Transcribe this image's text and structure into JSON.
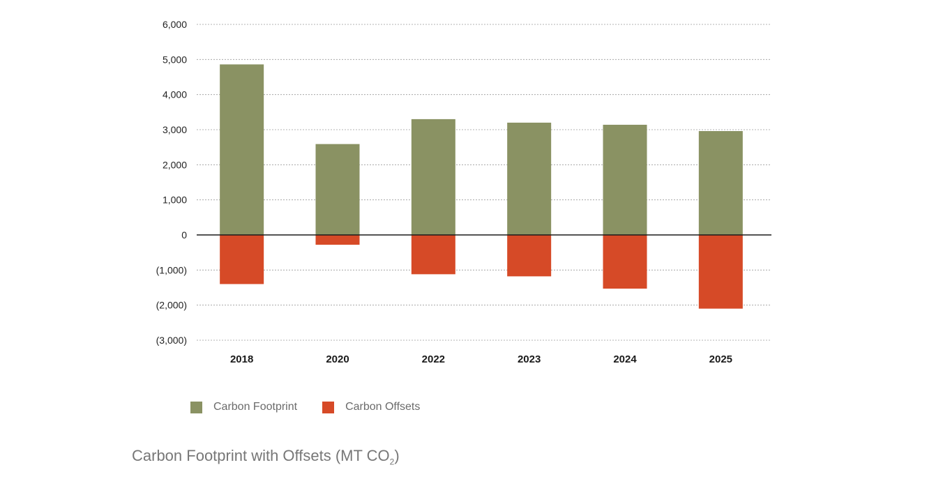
{
  "chart_data": {
    "type": "bar",
    "stacked": true,
    "categories": [
      "2018",
      "2020",
      "2022",
      "2023",
      "2024",
      "2025"
    ],
    "series": [
      {
        "name": "Carbon Footprint",
        "color": "#8a9263",
        "values": [
          4860,
          2590,
          3300,
          3200,
          3140,
          2960
        ]
      },
      {
        "name": "Carbon Offsets",
        "color": "#d64a27",
        "values": [
          -1400,
          -280,
          -1120,
          -1180,
          -1530,
          -2100
        ]
      }
    ],
    "ylim": [
      -3000,
      6000
    ],
    "yticks": [
      6000,
      5000,
      4000,
      3000,
      2000,
      1000,
      0,
      -1000,
      -2000,
      -3000
    ],
    "ytick_labels": [
      "6,000",
      "5,000",
      "4,000",
      "3,000",
      "2,000",
      "1,000",
      "0",
      "(1,000)",
      "(2,000)",
      "(3,000)"
    ],
    "grid": true,
    "legend_position": "bottom-left"
  },
  "caption": {
    "main": "Carbon Footprint with Offsets (MT CO",
    "subscript": "2",
    "end": ")"
  }
}
